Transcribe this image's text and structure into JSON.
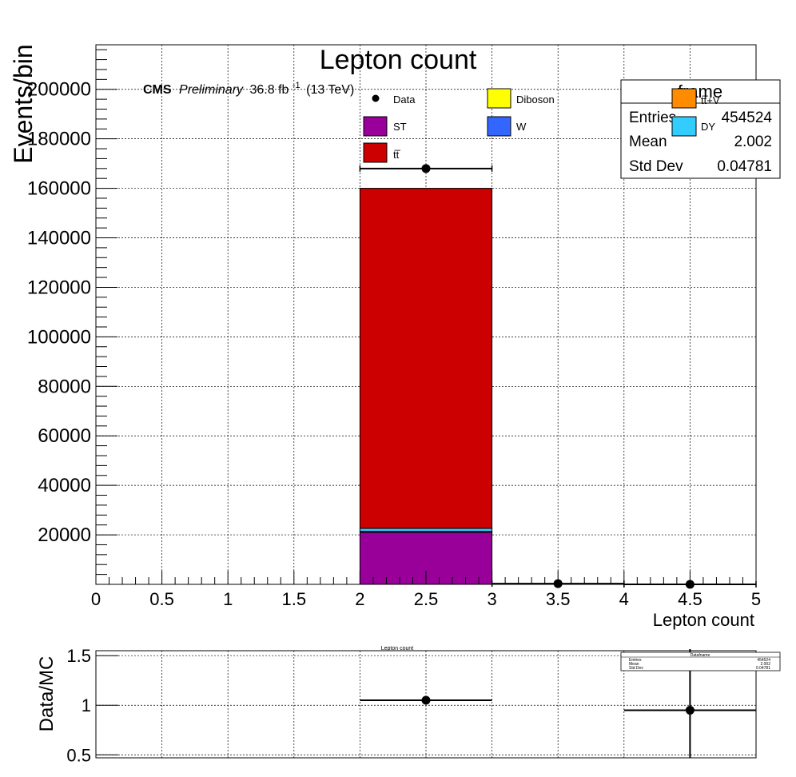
{
  "colors": {
    "data": "#000000",
    "diboson": "#ffff00",
    "ttv": "#ff8c00",
    "st": "#990099",
    "w": "#3366ff",
    "dy": "#33ccff",
    "ttbar": "#cc0000"
  },
  "chart_data": [
    {
      "type": "bar",
      "stacked": true,
      "title": "Lepton count",
      "xlabel": "Lepton count",
      "ylabel": "Events/bin",
      "xlim": [
        0,
        5
      ],
      "ylim": [
        0,
        218000
      ],
      "grid": true,
      "x_ticks": [
        "0",
        "0.5",
        "1",
        "1.5",
        "2",
        "2.5",
        "3",
        "3.5",
        "4",
        "4.5",
        "5"
      ],
      "y_ticks": [
        "20000",
        "40000",
        "60000",
        "80000",
        "100000",
        "120000",
        "140000",
        "160000",
        "180000",
        "200000"
      ],
      "bins": [
        [
          2,
          3
        ]
      ],
      "series": [
        {
          "name": "ST",
          "color_key": "st",
          "values": [
            21000
          ]
        },
        {
          "name": "W",
          "color_key": "w",
          "values": [
            400
          ]
        },
        {
          "name": "DY",
          "color_key": "dy",
          "values": [
            1200
          ]
        },
        {
          "name": "tt̅",
          "color_key": "ttbar",
          "values": [
            137400
          ]
        }
      ],
      "data_points": [
        {
          "x": 2.5,
          "y": 168000,
          "xerr": 0.5
        },
        {
          "x": 3.5,
          "y": 300,
          "xerr": 0.5
        },
        {
          "x": 4.5,
          "y": 10,
          "xerr": 0.5
        }
      ],
      "legend": {
        "placement": "top-center",
        "entries": [
          {
            "label": "Data",
            "marker": "point",
            "color_key": "data"
          },
          {
            "label": "Diboson",
            "marker": "box",
            "color_key": "diboson"
          },
          {
            "label": "tt̅+V",
            "marker": "box",
            "color_key": "ttv"
          },
          {
            "label": "ST",
            "marker": "box",
            "color_key": "st"
          },
          {
            "label": "W",
            "marker": "box",
            "color_key": "w"
          },
          {
            "label": "DY",
            "marker": "box",
            "color_key": "dy"
          },
          {
            "label": "tt̅",
            "marker": "box",
            "color_key": "ttbar"
          }
        ]
      },
      "cms_label": {
        "bold": "CMS",
        "italic": "Preliminary",
        "lumi": "36.8 fb",
        "lumi_sup": "-1",
        "energy": "(13 TeV)"
      },
      "stats_box": {
        "name": "frame",
        "rows": [
          {
            "label": "Entries",
            "value": "454524"
          },
          {
            "label": "Mean",
            "value": "2.002"
          },
          {
            "label": "Std Dev",
            "value": "0.04781"
          }
        ]
      }
    },
    {
      "type": "scatter",
      "title": "Lepton count",
      "ylabel": "Data/MC",
      "xlim": [
        0,
        5
      ],
      "ylim": [
        0.47,
        1.55
      ],
      "grid": true,
      "y_ticks": [
        "0.5",
        "1",
        "1.5"
      ],
      "points": [
        {
          "x": 2.5,
          "y": 1.05,
          "xerr": 0.5,
          "yerr": 0.0
        },
        {
          "x": 4.5,
          "y": 0.95,
          "xerr": 0.5,
          "yerr": 0.6
        }
      ],
      "stats_box": {
        "name": "Datafname",
        "rows": [
          {
            "label": "Entries",
            "value": "454524"
          },
          {
            "label": "Mean",
            "value": "2.002"
          },
          {
            "label": "Std Dev",
            "value": "0.04781"
          }
        ]
      }
    }
  ]
}
